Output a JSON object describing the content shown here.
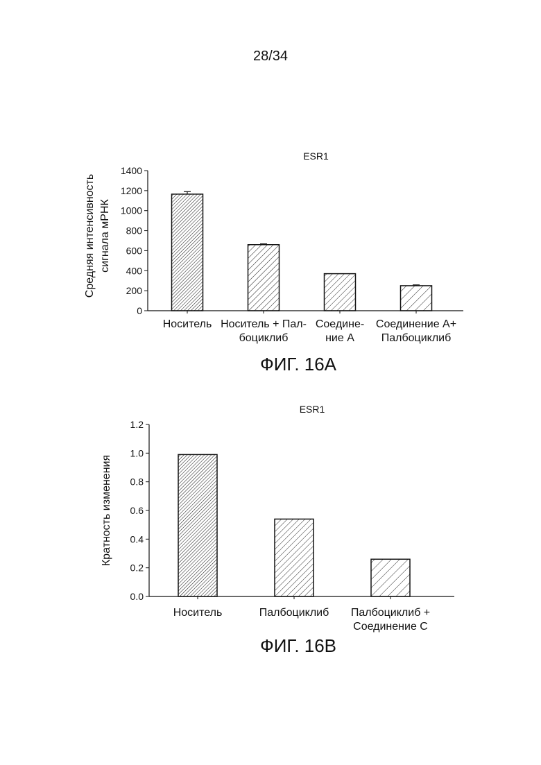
{
  "page": {
    "number": "28/34"
  },
  "figures": [
    {
      "caption": "ФИГ. 16А"
    },
    {
      "caption": "ФИГ. 16В"
    }
  ],
  "chart_data": [
    {
      "type": "bar",
      "title": "ESR1",
      "ylabel_lines": [
        "Средняя интенсивность",
        "сигнала мРНК"
      ],
      "xlabel": "",
      "ylim": [
        0,
        1400
      ],
      "yticks": [
        0,
        200,
        400,
        600,
        800,
        1000,
        1200,
        1400
      ],
      "tick_decimals": 0,
      "categories": [
        [
          "Носитель"
        ],
        [
          "Носитель + Пал-",
          "боциклиб"
        ],
        [
          "Соедине-",
          "ние А"
        ],
        [
          "Соединение А+",
          "Палбоциклиб"
        ]
      ],
      "values": [
        1165,
        660,
        370,
        250
      ],
      "error": [
        25,
        8,
        0,
        8
      ],
      "fills": [
        "dense",
        "medium",
        "medium",
        "sparse"
      ],
      "grid": false,
      "legend": "none"
    },
    {
      "type": "bar",
      "title": "ESR1",
      "ylabel_lines": [
        "Кратность изменения"
      ],
      "xlabel": "",
      "ylim": [
        0,
        1.2
      ],
      "yticks": [
        0.0,
        0.2,
        0.4,
        0.6,
        0.8,
        1.0,
        1.2
      ],
      "tick_decimals": 1,
      "categories": [
        [
          "Носитель"
        ],
        [
          "Палбоциклиб"
        ],
        [
          "Палбоциклиб +",
          "Соединение С"
        ]
      ],
      "values": [
        0.99,
        0.54,
        0.26
      ],
      "error": [
        0,
        0,
        0
      ],
      "fills": [
        "dense",
        "medium",
        "sparse"
      ],
      "grid": false,
      "legend": "none"
    }
  ]
}
